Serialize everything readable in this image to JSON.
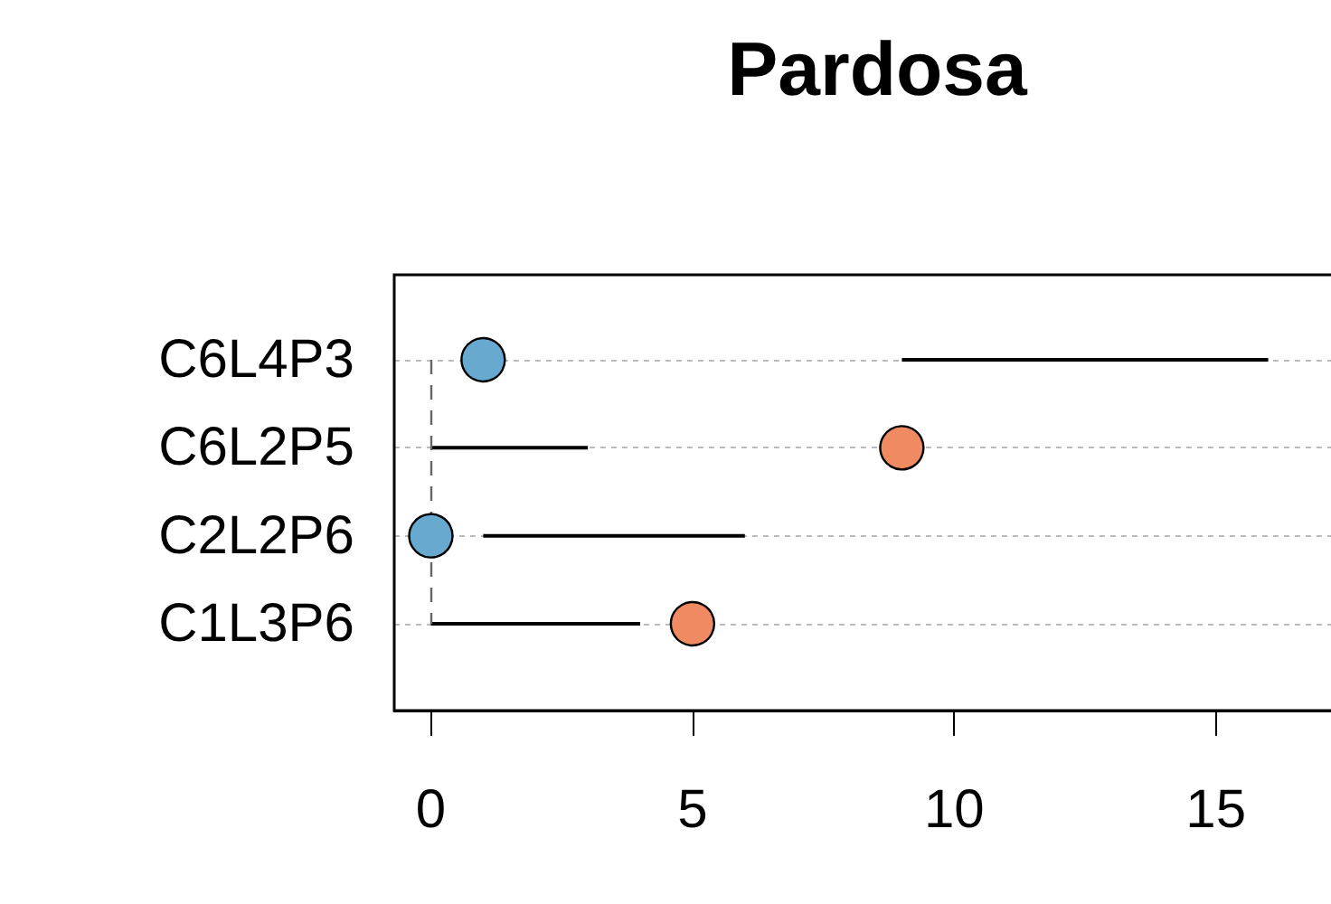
{
  "chart_data": {
    "type": "bar",
    "title": "Pardosa",
    "orientation": "horizontal",
    "categories": [
      "C6L4P3",
      "C6L2P5",
      "C2L2P6",
      "C1L3P6"
    ],
    "series": [
      {
        "color": "#000000",
        "base": [
          9,
          0,
          1,
          0
        ],
        "values": [
          7,
          3,
          5,
          4
        ]
      },
      {
        "type": "scatter",
        "colors": [
          "#67a9cf",
          "#ef8a62",
          "#67a9cf",
          "#ef8a62"
        ],
        "values": [
          1,
          9,
          0,
          5
        ]
      }
    ],
    "xlim": [
      -0.7,
      17.2
    ],
    "xticks": [
      0,
      5,
      10,
      15
    ],
    "grid": "y",
    "marker": "circle",
    "ref_lines": [
      {
        "axis": "x",
        "value": 0,
        "color": "#666666",
        "line_style": "dashed"
      }
    ]
  }
}
